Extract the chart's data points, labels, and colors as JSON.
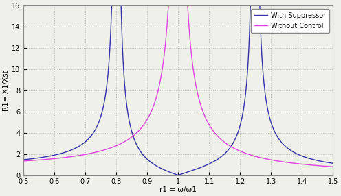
{
  "title": "",
  "xlabel": "r1 = ω/ω1",
  "ylabel": "R1= X1/Xst",
  "xlim": [
    0.5,
    1.5
  ],
  "ylim": [
    0,
    16
  ],
  "xticks": [
    0.5,
    0.6,
    0.7,
    0.8,
    0.9,
    1.0,
    1.1,
    1.2,
    1.3,
    1.4,
    1.5
  ],
  "yticks": [
    0,
    2,
    4,
    6,
    8,
    10,
    12,
    14,
    16
  ],
  "color_suppressor": "#3333aa",
  "color_no_control": "#dd44dd",
  "legend_labels": [
    "With Suppressor",
    "Without Control"
  ],
  "mu": 0.2,
  "background_color": "#f0f0ea",
  "grid_color": "#bbbbbb",
  "clip_val": 16.0
}
